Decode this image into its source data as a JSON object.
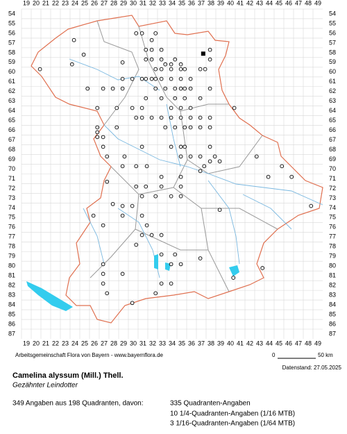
{
  "map": {
    "columns": [
      19,
      20,
      21,
      22,
      23,
      24,
      25,
      26,
      27,
      28,
      29,
      30,
      31,
      32,
      33,
      34,
      35,
      36,
      37,
      38,
      39,
      40,
      41,
      42,
      43,
      44,
      45,
      46,
      47,
      48,
      49
    ],
    "rows": [
      54,
      55,
      56,
      57,
      58,
      59,
      60,
      61,
      62,
      63,
      64,
      65,
      66,
      67,
      68,
      69,
      70,
      71,
      72,
      73,
      74,
      75,
      76,
      77,
      78,
      79,
      80,
      81,
      82,
      83,
      84,
      85,
      86,
      87
    ],
    "points": [
      [
        23.9,
        56.7
      ],
      [
        24.9,
        58.2
      ],
      [
        23.7,
        59.2
      ],
      [
        20.4,
        59.7
      ],
      [
        25.3,
        61.7
      ],
      [
        26.9,
        61.7
      ],
      [
        27.9,
        61.7
      ],
      [
        28.9,
        60.7
      ],
      [
        28.9,
        61.7
      ],
      [
        29.9,
        60.7
      ],
      [
        30.9,
        60.7
      ],
      [
        31.9,
        60.7
      ],
      [
        28.9,
        59.0
      ],
      [
        30.3,
        56.0
      ],
      [
        30.9,
        56.0
      ],
      [
        32.3,
        56.0
      ],
      [
        31.9,
        56.7
      ],
      [
        31.3,
        57.7
      ],
      [
        31.9,
        57.7
      ],
      [
        32.9,
        57.7
      ],
      [
        31.3,
        58.7
      ],
      [
        31.9,
        58.7
      ],
      [
        32.9,
        58.7
      ],
      [
        33.3,
        59.2
      ],
      [
        33.9,
        59.2
      ],
      [
        34.3,
        58.7
      ],
      [
        34.9,
        59.2
      ],
      [
        32.3,
        59.7
      ],
      [
        32.9,
        59.7
      ],
      [
        33.9,
        59.7
      ],
      [
        34.9,
        59.7
      ],
      [
        35.3,
        59.7
      ],
      [
        31.3,
        60.7
      ],
      [
        32.3,
        60.7
      ],
      [
        32.9,
        60.7
      ],
      [
        33.9,
        60.7
      ],
      [
        34.9,
        60.7
      ],
      [
        35.9,
        60.7
      ],
      [
        32.3,
        61.7
      ],
      [
        33.3,
        61.7
      ],
      [
        34.3,
        61.7
      ],
      [
        34.9,
        61.7
      ],
      [
        35.3,
        61.7
      ],
      [
        35.9,
        61.7
      ],
      [
        36.9,
        59.7
      ],
      [
        37.4,
        59.7
      ],
      [
        37.9,
        58.7
      ],
      [
        37.9,
        57.7
      ],
      [
        31.3,
        62.7
      ],
      [
        32.9,
        62.7
      ],
      [
        34.3,
        62.7
      ],
      [
        35.3,
        62.7
      ],
      [
        33.9,
        63.7
      ],
      [
        34.9,
        63.7
      ],
      [
        35.9,
        63.7
      ],
      [
        36.9,
        62.7
      ],
      [
        37.9,
        61.7
      ],
      [
        32.9,
        64.7
      ],
      [
        33.9,
        64.7
      ],
      [
        34.9,
        64.7
      ],
      [
        35.9,
        64.7
      ],
      [
        36.9,
        64.7
      ],
      [
        37.9,
        64.7
      ],
      [
        31.9,
        64.7
      ],
      [
        30.9,
        64.7
      ],
      [
        33.3,
        65.7
      ],
      [
        34.3,
        65.7
      ],
      [
        35.3,
        65.7
      ],
      [
        35.9,
        65.7
      ],
      [
        36.9,
        65.7
      ],
      [
        37.9,
        65.7
      ],
      [
        26.3,
        65.7
      ],
      [
        26.3,
        66.2
      ],
      [
        26.3,
        66.7
      ],
      [
        26.9,
        66.7
      ],
      [
        26.9,
        67.7
      ],
      [
        27.3,
        68.7
      ],
      [
        30.9,
        67.7
      ],
      [
        33.9,
        67.7
      ],
      [
        34.9,
        67.7
      ],
      [
        35.3,
        67.7
      ],
      [
        34.9,
        68.7
      ],
      [
        35.9,
        68.7
      ],
      [
        36.9,
        68.7
      ],
      [
        37.9,
        67.7
      ],
      [
        38.4,
        68.7
      ],
      [
        38.9,
        69.2
      ],
      [
        37.9,
        69.2
      ],
      [
        37.3,
        69.7
      ],
      [
        36.9,
        70.2
      ],
      [
        26.3,
        63.7
      ],
      [
        28.3,
        63.7
      ],
      [
        29.9,
        63.7
      ],
      [
        30.9,
        63.7
      ],
      [
        30.3,
        64.7
      ],
      [
        28.3,
        65.7
      ],
      [
        29.1,
        68.7
      ],
      [
        28.9,
        69.7
      ],
      [
        30.3,
        69.7
      ],
      [
        31.4,
        69.7
      ],
      [
        32.9,
        70.8
      ],
      [
        34.9,
        70.8
      ],
      [
        32.9,
        71.8
      ],
      [
        31.3,
        71.8
      ],
      [
        34.9,
        71.8
      ],
      [
        30.3,
        71.8
      ],
      [
        27.3,
        71.3
      ],
      [
        28.9,
        73.8
      ],
      [
        29.9,
        73.8
      ],
      [
        30.9,
        72.8
      ],
      [
        32.3,
        72.8
      ],
      [
        33.9,
        72.8
      ],
      [
        34.9,
        72.8
      ],
      [
        38.9,
        74.2
      ],
      [
        25.9,
        74.8
      ],
      [
        26.9,
        75.8
      ],
      [
        27.9,
        73.6
      ],
      [
        28.9,
        74.8
      ],
      [
        30.9,
        74.8
      ],
      [
        31.4,
        75.8
      ],
      [
        31.9,
        76.8
      ],
      [
        30.9,
        76.8
      ],
      [
        30.3,
        77.8
      ],
      [
        32.9,
        76.8
      ],
      [
        32.9,
        78.8
      ],
      [
        34.3,
        78.8
      ],
      [
        34.9,
        79.8
      ],
      [
        33.9,
        79.8
      ],
      [
        36.9,
        79.2
      ],
      [
        40.3,
        81.2
      ],
      [
        26.9,
        79.8
      ],
      [
        26.9,
        80.8
      ],
      [
        26.9,
        81.8
      ],
      [
        27.3,
        82.8
      ],
      [
        32.9,
        81.8
      ],
      [
        33.9,
        81.8
      ],
      [
        32.3,
        82.8
      ],
      [
        28.9,
        80.8
      ],
      [
        29.9,
        83.8
      ],
      [
        40.4,
        63.7
      ],
      [
        42.7,
        68.7
      ],
      [
        43.9,
        70.8
      ],
      [
        45.3,
        69.7
      ],
      [
        46.3,
        70.8
      ],
      [
        48.3,
        73.8
      ],
      [
        43.3,
        80.2
      ]
    ],
    "filled_squares": [
      [
        37.2,
        58.1
      ]
    ]
  },
  "footer": {
    "attribution": "Arbeitsgemeinschaft Flora von Bayern - www.bayernflora.de",
    "scale_start": "0",
    "scale_end": "50 km",
    "date": "Datenstand: 27.05.2025"
  },
  "species": {
    "scientific_name": "Camelina alyssum (Mill.) Thell.",
    "common_name": "Gezähnter Leindotter"
  },
  "statistics": {
    "summary": "349 Angaben aus 198 Quadranten, davon:",
    "lines": [
      "335 Quadranten-Angaben",
      "10 1/4-Quadranten-Angaben (1/16 MTB)",
      "3 1/16-Quadranten-Angaben (1/64 MTB)"
    ]
  }
}
